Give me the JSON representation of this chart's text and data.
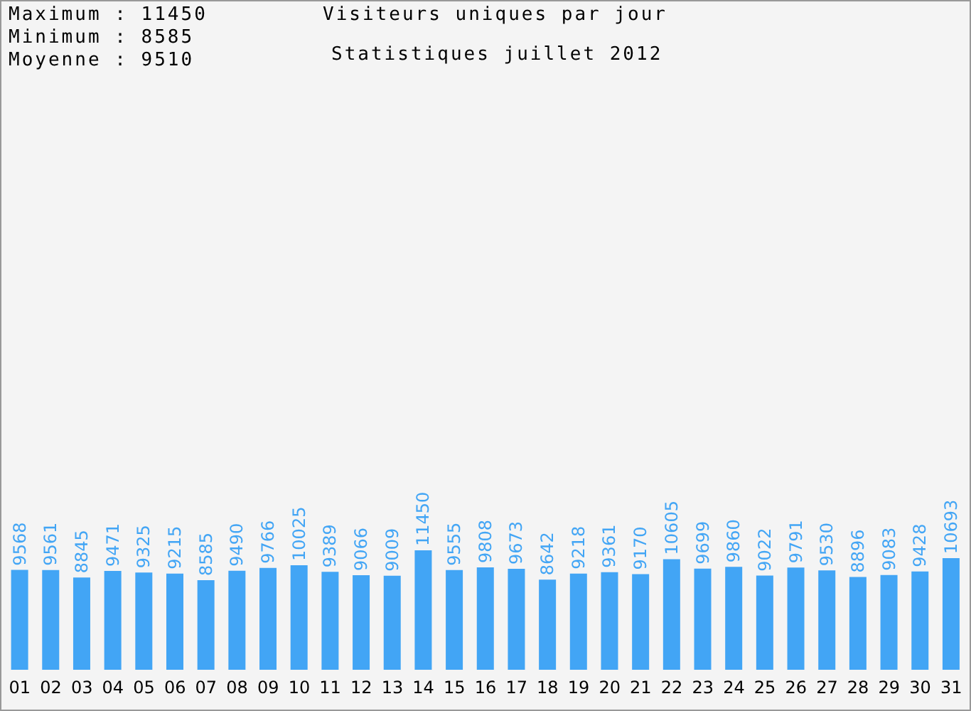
{
  "chart_data": {
    "type": "bar",
    "title": "Visiteurs uniques par jour",
    "subtitle": "Statistiques juillet 2012",
    "annotations": [
      "Maximum : 11450",
      "Minimum : 8585",
      "Moyenne : 9510"
    ],
    "categories": [
      "01",
      "02",
      "03",
      "04",
      "05",
      "06",
      "07",
      "08",
      "09",
      "10",
      "11",
      "12",
      "13",
      "14",
      "15",
      "16",
      "17",
      "18",
      "19",
      "20",
      "21",
      "22",
      "23",
      "24",
      "25",
      "26",
      "27",
      "28",
      "29",
      "30",
      "31"
    ],
    "values": [
      9568,
      9561,
      8845,
      9471,
      9325,
      9215,
      8585,
      9490,
      9766,
      10025,
      9389,
      9066,
      9009,
      11450,
      9555,
      9808,
      9673,
      8642,
      9218,
      9361,
      9170,
      10605,
      9699,
      9860,
      9022,
      9791,
      9530,
      8896,
      9083,
      9428,
      10693
    ],
    "color": "#42a5f5",
    "data_labels": true,
    "grid": false,
    "legend": false
  }
}
